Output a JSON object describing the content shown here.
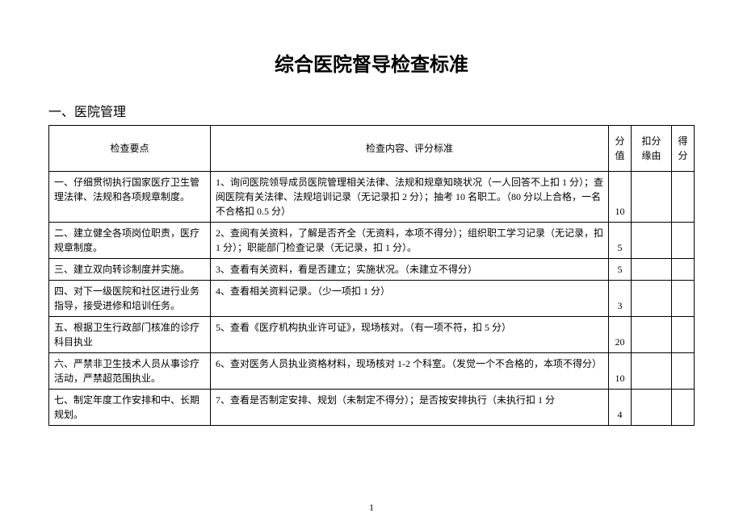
{
  "title": "综合医院督导检查标准",
  "section_heading": "一、医院管理",
  "page_number": "1",
  "table": {
    "headers": {
      "point": "检查要点",
      "content": "检查内容、评分标准",
      "score_top": "分",
      "score_bottom": "值",
      "deduct_top": "扣分",
      "deduct_bottom": "缘由",
      "get_top": "得",
      "get_bottom": "分"
    },
    "rows": [
      {
        "point": "一、仔细贯彻执行国家医疗卫生管理法律、法规和各项规章制度。",
        "content": "1、询问医院领导成员医院管理相关法律、法规和规章知晓状况（一人回答不上扣 1 分）；查阅医院有关法律、法规培训记录（无记录扣 2 分）；抽考 10 名职工。（80 分以上合格，一名不合格扣 0.5 分）",
        "score": "10",
        "deduct": "",
        "get": ""
      },
      {
        "point": "二、建立健全各项岗位职责，医疗规章制度。",
        "content": "2、查阅有关资料，了解是否齐全（无资料，本项不得分）；组织职工学习记录（无记录，扣 1 分）；职能部门检查记录（无记录，扣 1 分）。",
        "score": "5",
        "deduct": "",
        "get": ""
      },
      {
        "point": "三、建立双向转诊制度并实施。",
        "content": "3、查看有关资料，看是否建立；实施状况。（未建立不得分）",
        "score": "5",
        "deduct": "",
        "get": ""
      },
      {
        "point": "四、对下一级医院和社区进行业务指导，接受进修和培训任务。",
        "content": "4、查看相关资料记录。（少一项扣 1 分）",
        "score": "3",
        "deduct": "",
        "get": ""
      },
      {
        "point": "五、根据卫生行政部门核准的诊疗科目执业",
        "content": "5、查看《医疗机构执业许可证》，现场核对。（有一项不符，扣 5 分）",
        "score": "20",
        "deduct": "",
        "get": ""
      },
      {
        "point": "六、严禁非卫生技术人员从事诊疗活动，严禁超范围执业。",
        "content": "6、查对医务人员执业资格材料，现场核对 1-2 个科室。（发觉一个不合格的，本项不得分）",
        "score": "10",
        "deduct": "",
        "get": ""
      },
      {
        "point": "七、制定年度工作安排和中、长期规划。",
        "content": "7、查看是否制定安排、规划（未制定不得分）；是否按安排执行（未执行扣 1 分",
        "score": "4",
        "deduct": "",
        "get": ""
      }
    ]
  }
}
